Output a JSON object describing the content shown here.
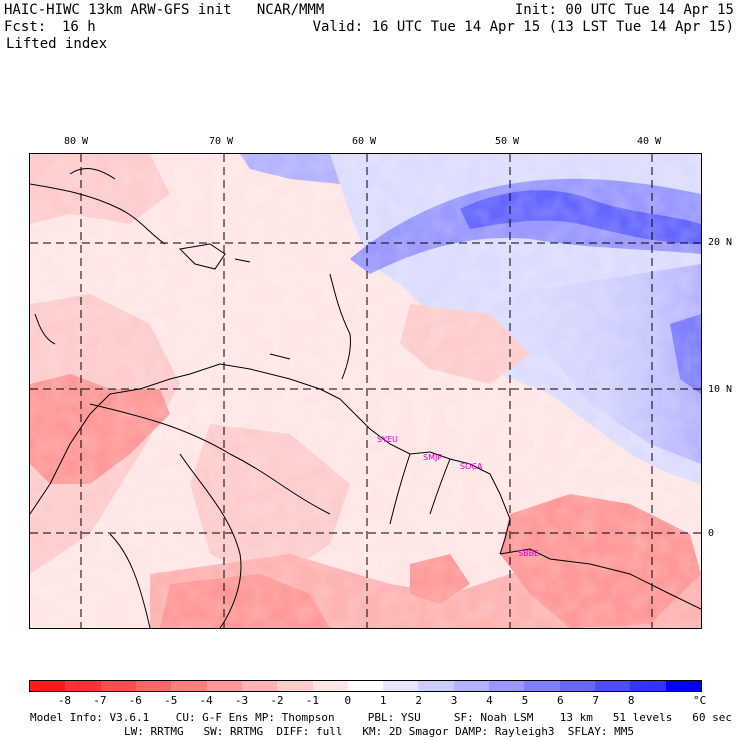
{
  "header": {
    "model_line": "HAIC-HIWC 13km ARW-GFS init   NCAR/MMM",
    "init": "Init: 00 UTC Tue 14 Apr 15",
    "fcst_label": "Fcst:",
    "fcst_value": "16 h",
    "valid": "Valid: 16 UTC Tue 14 Apr 15 (13 LST Tue 14 Apr 15)",
    "field": "Lifted index"
  },
  "axes": {
    "lon_labels": [
      "80 W",
      "70 W",
      "60 W",
      "50 W",
      "40 W"
    ],
    "lat_labels": [
      "20 N",
      "10 N",
      "0"
    ]
  },
  "cities": [
    "SYEU",
    "SMJP",
    "SOCA",
    "SBBE"
  ],
  "colorbar": {
    "ticks": [
      "-8",
      "-7",
      "-6",
      "-5",
      "-4",
      "-3",
      "-2",
      "-1",
      "0",
      "1",
      "2",
      "3",
      "4",
      "5",
      "6",
      "7",
      "8"
    ],
    "unit": "°C",
    "colors": [
      "#ff1a1a",
      "#ff3333",
      "#ff4d4d",
      "#ff6666",
      "#ff8080",
      "#ff9999",
      "#ffb3b3",
      "#ffcccc",
      "#ffe6e6",
      "#ffffff",
      "#e6e6ff",
      "#ccccff",
      "#b3b3ff",
      "#9999ff",
      "#8080ff",
      "#6666ff",
      "#4d4dff",
      "#3333ff",
      "#0000ee"
    ]
  },
  "footer": {
    "line1": "Model Info: V3.6.1    CU: G-F Ens MP: Thompson     PBL: YSU     SF: Noah LSM    13 km   51 levels   60 sec",
    "line2": "LW: RRTMG   SW: RRTMG  DIFF: full   KM: 2D Smagor DAMP: Rayleigh3  SFLAY: MM5"
  }
}
